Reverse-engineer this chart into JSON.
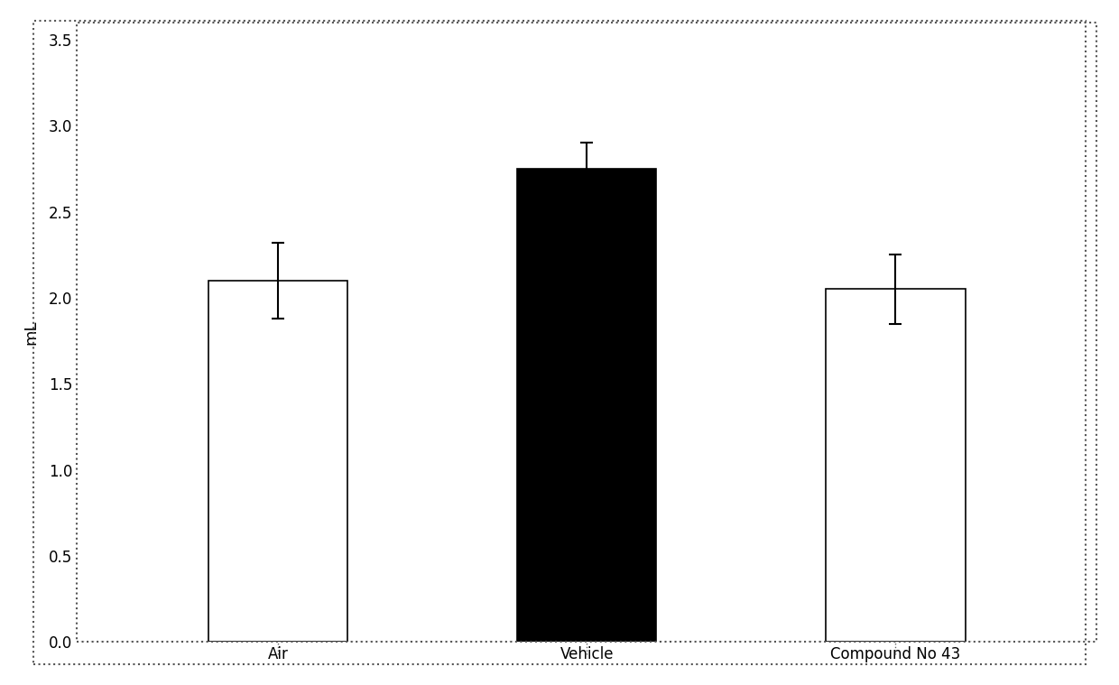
{
  "categories": [
    "Air",
    "Vehicle",
    "Compound No 43"
  ],
  "values": [
    2.1,
    2.75,
    2.05
  ],
  "errors": [
    0.22,
    0.15,
    0.2
  ],
  "bar_colors": [
    "white",
    "black",
    "white"
  ],
  "bar_hatches": [
    "",
    "",
    "##"
  ],
  "bar_edgecolors": [
    "black",
    "black",
    "black"
  ],
  "ylabel": "mL",
  "ylim": [
    0.0,
    3.6
  ],
  "yticks": [
    0.0,
    0.5,
    1.0,
    1.5,
    2.0,
    2.5,
    3.0,
    3.5
  ],
  "background_color": "#ffffff",
  "bar_width": 0.45,
  "capsize": 5,
  "axis_fontsize": 13,
  "tick_fontsize": 12,
  "border_color": "#555555",
  "border_linestyle": ":",
  "border_linewidth": 1.5
}
